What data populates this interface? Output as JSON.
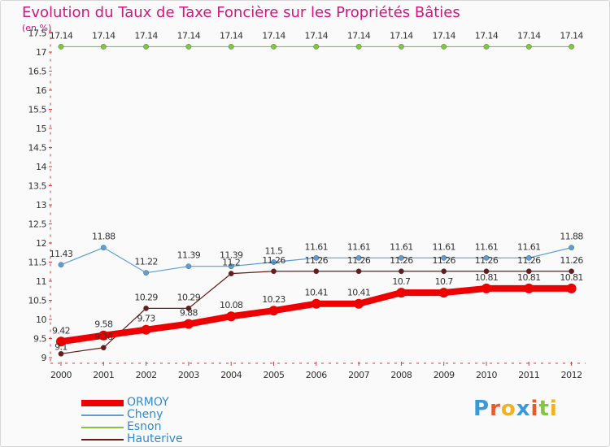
{
  "chart_data": {
    "type": "line",
    "title": "Evolution du Taux de Taxe Foncière sur les Propriétés Bâties",
    "unit_label": "(en %)",
    "x": [
      "2000",
      "2001",
      "2002",
      "2003",
      "2004",
      "2005",
      "2006",
      "2007",
      "2008",
      "2009",
      "2010",
      "2011",
      "2012"
    ],
    "ylim": [
      9,
      17.5
    ],
    "yticks": [
      "9",
      "9.5",
      "10",
      "10.5",
      "11",
      "11.5",
      "12",
      "12.5",
      "13",
      "13.5",
      "14",
      "14.5",
      "15",
      "15.5",
      "16",
      "16.5",
      "17",
      "17.5"
    ],
    "series": [
      {
        "name": "ORMOY",
        "color": "#ee0000",
        "values": [
          9.42,
          9.58,
          9.73,
          9.88,
          10.08,
          10.23,
          10.41,
          10.41,
          10.7,
          10.7,
          10.81,
          10.81,
          10.81
        ],
        "labels": [
          "9.42",
          "9.58",
          "9.73",
          "9.88",
          "10.08",
          "10.23",
          "10.41",
          "10.41",
          "10.7",
          "10.7",
          "10.81",
          "10.81",
          "10.81"
        ]
      },
      {
        "name": "Cheny",
        "color": "#5b9fd8",
        "values": [
          11.43,
          11.88,
          11.22,
          11.39,
          11.39,
          11.5,
          11.61,
          11.61,
          11.61,
          11.61,
          11.61,
          11.61,
          11.88
        ],
        "labels": [
          "11.43",
          "11.88",
          "11.22",
          "11.39",
          "11.39",
          "11.5",
          "11.61",
          "11.61",
          "11.61",
          "11.61",
          "11.61",
          "11.61",
          "11.88"
        ]
      },
      {
        "name": "Esnon",
        "color": "#7ec83a",
        "values": [
          17.14,
          17.14,
          17.14,
          17.14,
          17.14,
          17.14,
          17.14,
          17.14,
          17.14,
          17.14,
          17.14,
          17.14,
          17.14
        ],
        "labels": [
          "17.14",
          "17.14",
          "17.14",
          "17.14",
          "17.14",
          "17.14",
          "17.14",
          "17.14",
          "17.14",
          "17.14",
          "17.14",
          "17.14",
          "17.14"
        ]
      },
      {
        "name": "Hauterive",
        "color": "#6b1a1a",
        "values": [
          9.1,
          9.26,
          10.29,
          10.29,
          11.2,
          11.26,
          11.26,
          11.26,
          11.26,
          11.26,
          11.26,
          11.26,
          11.26
        ],
        "labels": [
          "9.1",
          "9.26",
          "10.29",
          "10.29",
          "11.2",
          "11.26",
          "11.26",
          "11.26",
          "11.26",
          "11.26",
          "11.26",
          "11.26",
          "11.26"
        ]
      }
    ],
    "legend_position": "bottom-left"
  },
  "legend": {
    "ormoy": "ORMOY",
    "cheny": "Cheny",
    "esnon": "Esnon",
    "hauterive": "Hauterive"
  },
  "logo": {
    "text": "Proxiti",
    "letters": [
      "P",
      "r",
      "o",
      "x",
      "i",
      "t",
      "i"
    ],
    "colors": [
      "#3a9ad9",
      "#e9592c",
      "#f3b21d",
      "#3a9ad9",
      "#e9592c",
      "#7ec83a",
      "#f3b21d"
    ]
  }
}
